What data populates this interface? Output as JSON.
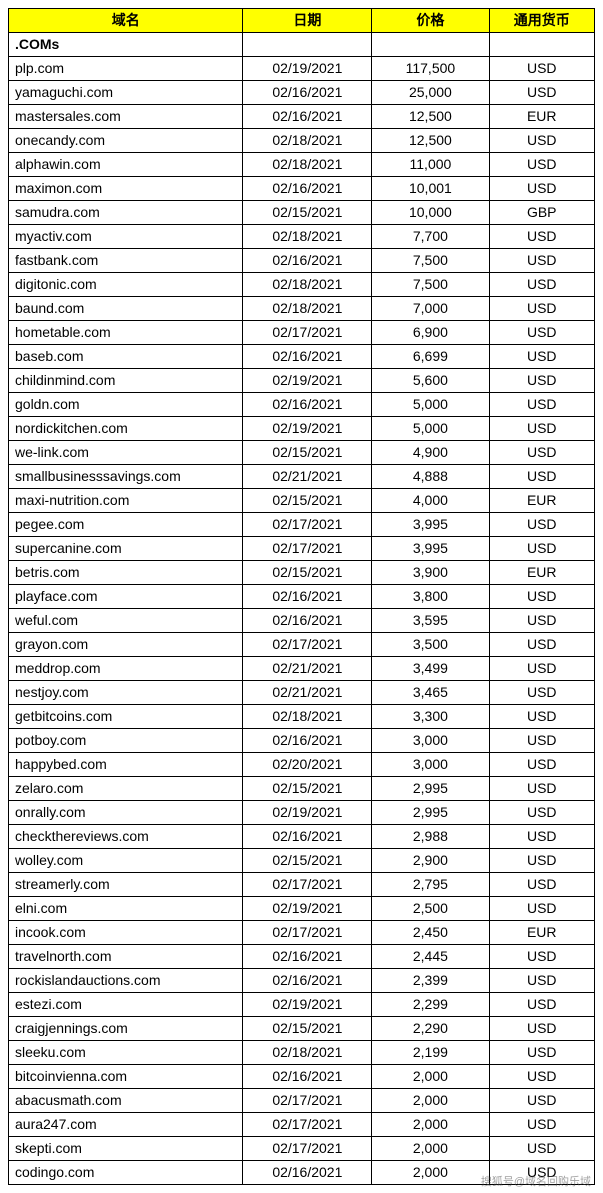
{
  "columns": {
    "domain": "域名",
    "date": "日期",
    "price": "价格",
    "currency": "通用货币"
  },
  "section_label": ".COMs",
  "watermark": "搜狐号@域名回购乐域",
  "rows": [
    {
      "domain": "plp.com",
      "date": "02/19/2021",
      "price": "117,500",
      "currency": "USD"
    },
    {
      "domain": "yamaguchi.com",
      "date": "02/16/2021",
      "price": "25,000",
      "currency": "USD"
    },
    {
      "domain": "mastersales.com",
      "date": "02/16/2021",
      "price": "12,500",
      "currency": "EUR"
    },
    {
      "domain": "onecandy.com",
      "date": "02/18/2021",
      "price": "12,500",
      "currency": "USD"
    },
    {
      "domain": "alphawin.com",
      "date": "02/18/2021",
      "price": "11,000",
      "currency": "USD"
    },
    {
      "domain": "maximon.com",
      "date": "02/16/2021",
      "price": "10,001",
      "currency": "USD"
    },
    {
      "domain": "samudra.com",
      "date": "02/15/2021",
      "price": "10,000",
      "currency": "GBP"
    },
    {
      "domain": "myactiv.com",
      "date": "02/18/2021",
      "price": "7,700",
      "currency": "USD"
    },
    {
      "domain": "fastbank.com",
      "date": "02/16/2021",
      "price": "7,500",
      "currency": "USD"
    },
    {
      "domain": "digitonic.com",
      "date": "02/18/2021",
      "price": "7,500",
      "currency": "USD"
    },
    {
      "domain": "baund.com",
      "date": "02/18/2021",
      "price": "7,000",
      "currency": "USD"
    },
    {
      "domain": "hometable.com",
      "date": "02/17/2021",
      "price": "6,900",
      "currency": "USD"
    },
    {
      "domain": "baseb.com",
      "date": "02/16/2021",
      "price": "6,699",
      "currency": "USD"
    },
    {
      "domain": "childinmind.com",
      "date": "02/19/2021",
      "price": "5,600",
      "currency": "USD"
    },
    {
      "domain": "goldn.com",
      "date": "02/16/2021",
      "price": "5,000",
      "currency": "USD"
    },
    {
      "domain": "nordickitchen.com",
      "date": "02/19/2021",
      "price": "5,000",
      "currency": "USD"
    },
    {
      "domain": "we-link.com",
      "date": "02/15/2021",
      "price": "4,900",
      "currency": "USD"
    },
    {
      "domain": "smallbusinesssavings.com",
      "date": "02/21/2021",
      "price": "4,888",
      "currency": "USD"
    },
    {
      "domain": "maxi-nutrition.com",
      "date": "02/15/2021",
      "price": "4,000",
      "currency": "EUR"
    },
    {
      "domain": "pegee.com",
      "date": "02/17/2021",
      "price": "3,995",
      "currency": "USD"
    },
    {
      "domain": "supercanine.com",
      "date": "02/17/2021",
      "price": "3,995",
      "currency": "USD"
    },
    {
      "domain": "betris.com",
      "date": "02/15/2021",
      "price": "3,900",
      "currency": "EUR"
    },
    {
      "domain": "playface.com",
      "date": "02/16/2021",
      "price": "3,800",
      "currency": "USD"
    },
    {
      "domain": "weful.com",
      "date": "02/16/2021",
      "price": "3,595",
      "currency": "USD"
    },
    {
      "domain": "grayon.com",
      "date": "02/17/2021",
      "price": "3,500",
      "currency": "USD"
    },
    {
      "domain": "meddrop.com",
      "date": "02/21/2021",
      "price": "3,499",
      "currency": "USD"
    },
    {
      "domain": "nestjoy.com",
      "date": "02/21/2021",
      "price": "3,465",
      "currency": "USD"
    },
    {
      "domain": "getbitcoins.com",
      "date": "02/18/2021",
      "price": "3,300",
      "currency": "USD"
    },
    {
      "domain": "potboy.com",
      "date": "02/16/2021",
      "price": "3,000",
      "currency": "USD"
    },
    {
      "domain": "happybed.com",
      "date": "02/20/2021",
      "price": "3,000",
      "currency": "USD"
    },
    {
      "domain": "zelaro.com",
      "date": "02/15/2021",
      "price": "2,995",
      "currency": "USD"
    },
    {
      "domain": "onrally.com",
      "date": "02/19/2021",
      "price": "2,995",
      "currency": "USD"
    },
    {
      "domain": "checkthereviews.com",
      "date": "02/16/2021",
      "price": "2,988",
      "currency": "USD"
    },
    {
      "domain": "wolley.com",
      "date": "02/15/2021",
      "price": "2,900",
      "currency": "USD"
    },
    {
      "domain": "streamerly.com",
      "date": "02/17/2021",
      "price": "2,795",
      "currency": "USD"
    },
    {
      "domain": "elni.com",
      "date": "02/19/2021",
      "price": "2,500",
      "currency": "USD"
    },
    {
      "domain": "incook.com",
      "date": "02/17/2021",
      "price": "2,450",
      "currency": "EUR"
    },
    {
      "domain": "travelnorth.com",
      "date": "02/16/2021",
      "price": "2,445",
      "currency": "USD"
    },
    {
      "domain": "rockislandauctions.com",
      "date": "02/16/2021",
      "price": "2,399",
      "currency": "USD"
    },
    {
      "domain": "estezi.com",
      "date": "02/19/2021",
      "price": "2,299",
      "currency": "USD"
    },
    {
      "domain": "craigjennings.com",
      "date": "02/15/2021",
      "price": "2,290",
      "currency": "USD"
    },
    {
      "domain": "sleeku.com",
      "date": "02/18/2021",
      "price": "2,199",
      "currency": "USD"
    },
    {
      "domain": "bitcoinvienna.com",
      "date": "02/16/2021",
      "price": "2,000",
      "currency": "USD"
    },
    {
      "domain": "abacusmath.com",
      "date": "02/17/2021",
      "price": "2,000",
      "currency": "USD"
    },
    {
      "domain": "aura247.com",
      "date": "02/17/2021",
      "price": "2,000",
      "currency": "USD"
    },
    {
      "domain": "skepti.com",
      "date": "02/17/2021",
      "price": "2,000",
      "currency": "USD"
    },
    {
      "domain": "codingo.com",
      "date": "02/16/2021",
      "price": "2,000",
      "currency": "USD"
    }
  ]
}
